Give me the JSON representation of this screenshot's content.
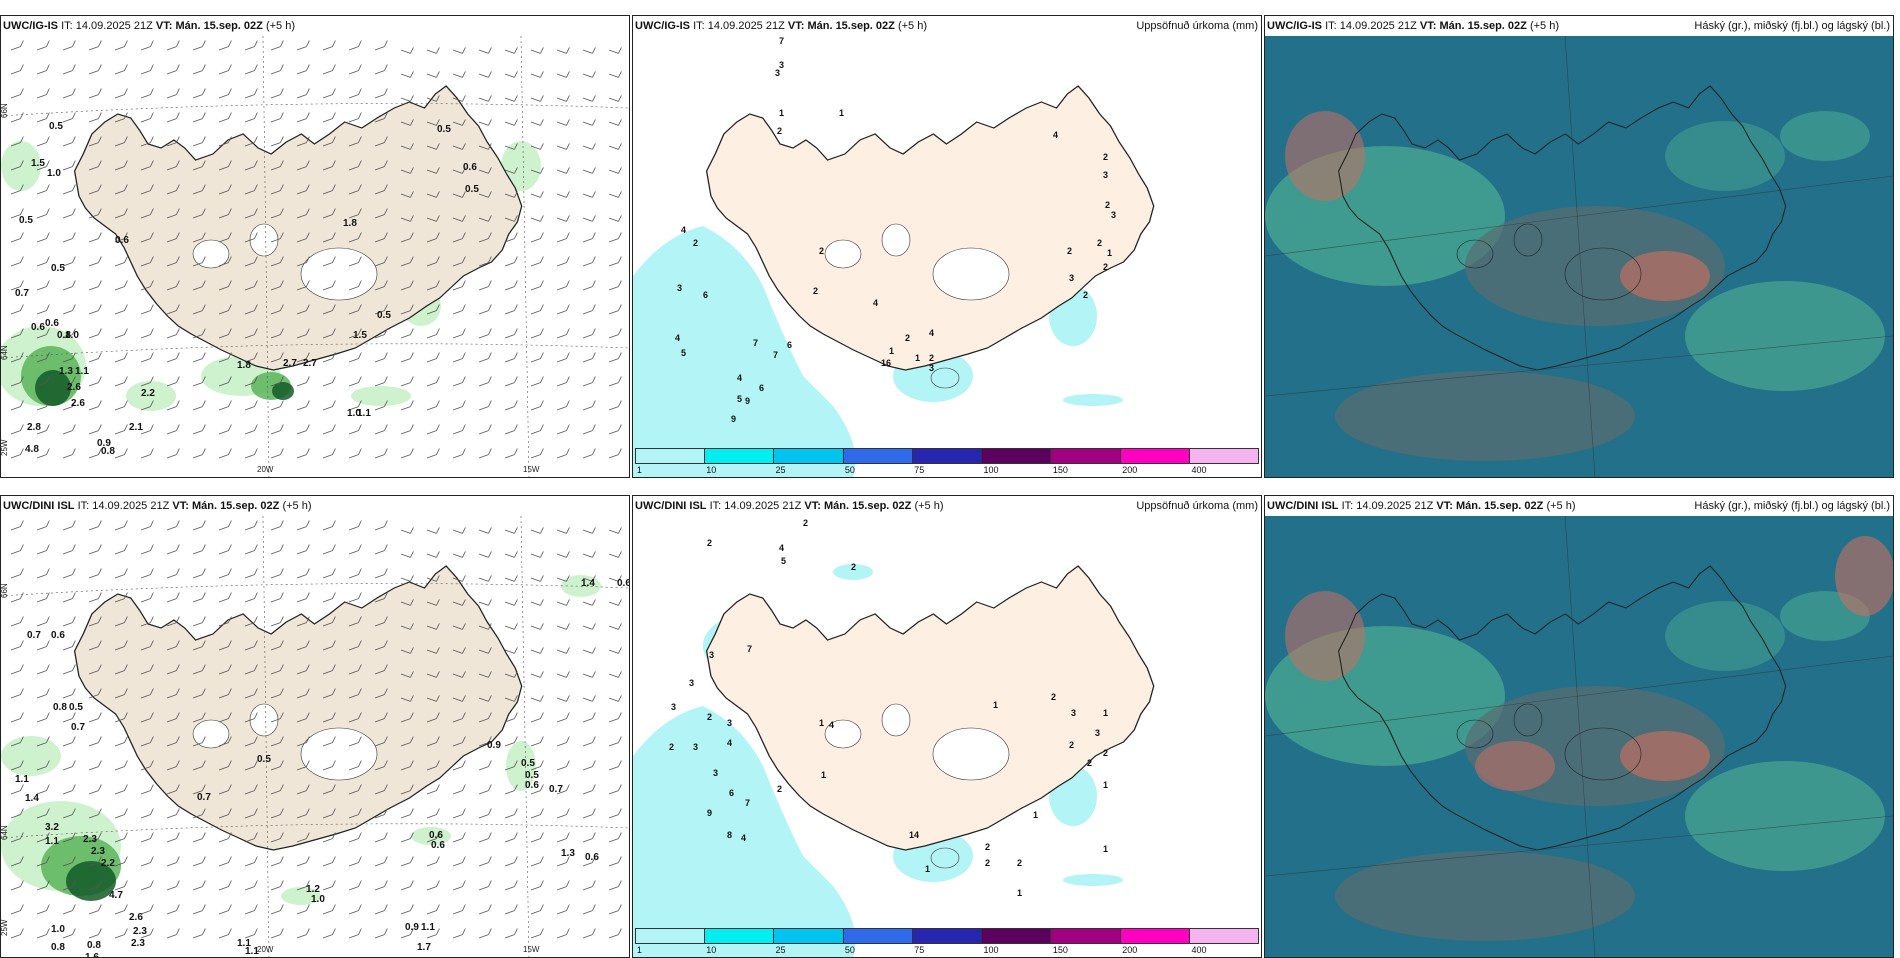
{
  "panels": [
    {
      "model": "UWC/IG-IS",
      "it_label": "IT:",
      "it_value": "14.09.2025 21Z",
      "vt_label": "VT:",
      "vt_value": "Mán. 15.sep. 02Z",
      "lead": "(+5 h)",
      "right_title": "",
      "kind": "wind",
      "axis_labels": [
        "66N",
        "64N",
        "20W",
        "15W",
        "25W"
      ],
      "values": [
        "0.5",
        "1.5",
        "1.0",
        "0.5",
        "0.6",
        "0.5",
        "0.7",
        "0.6",
        "0.6",
        "0.8",
        "1.0",
        "1.3",
        "1.1",
        "2.6",
        "2.6",
        "2.2",
        "2.1",
        "2.8",
        "4.8",
        "0.9",
        "0.8",
        "2.7",
        "2.7",
        "1.8",
        "0.5",
        "1.5",
        "1.0",
        "1.1",
        "0.5",
        "0.6",
        "0.5",
        "1.8"
      ]
    },
    {
      "model": "UWC/IG-IS",
      "it_label": "IT:",
      "it_value": "14.09.2025 21Z",
      "vt_label": "VT:",
      "vt_value": "Mán. 15.sep. 02Z",
      "lead": "(+5 h)",
      "right_title": "Uppsöfnuð úrkoma (mm)",
      "kind": "precip",
      "values": [
        "7",
        "3",
        "3",
        "1",
        "1",
        "2",
        "4",
        "2",
        "3",
        "6",
        "4",
        "5",
        "4",
        "5",
        "9",
        "9",
        "6",
        "7",
        "7",
        "6",
        "2",
        "2",
        "4",
        "2",
        "3",
        "1",
        "2",
        "1",
        "16",
        "4",
        "4",
        "2",
        "2",
        "2",
        "1",
        "2",
        "3",
        "2",
        "2",
        "3",
        "3"
      ]
    },
    {
      "model": "UWC/IG-IS",
      "it_label": "IT:",
      "it_value": "14.09.2025 21Z",
      "vt_label": "VT:",
      "vt_value": "Mán. 15.sep. 02Z",
      "lead": "(+5 h)",
      "right_title": "Háský (gr.), miðský (fj.bl.) og lágský (bl.)",
      "kind": "cloud"
    },
    {
      "model": "UWC/DINI ISL",
      "it_label": "IT:",
      "it_value": "14.09.2025 21Z",
      "vt_label": "VT:",
      "vt_value": "Mán. 15.sep. 02Z",
      "lead": "(+5 h)",
      "right_title": "",
      "kind": "wind",
      "axis_labels": [
        "66N",
        "64N",
        "20W",
        "15W",
        "25W"
      ],
      "values": [
        "0.7",
        "0.6",
        "0.8",
        "0.5",
        "0.7",
        "1.1",
        "1.4",
        "3.2",
        "1.1",
        "2.3",
        "2.3",
        "2.2",
        "4.7",
        "2.6",
        "2.3",
        "1.0",
        "0.8",
        "0.8",
        "1.6",
        "2.3",
        "1.1",
        "1.1",
        "1.2",
        "1.0",
        "0.7",
        "0.5",
        "0.6",
        "0.6",
        "0.9",
        "0.5",
        "0.5",
        "0.6",
        "0.7",
        "1.4",
        "0.6",
        "1.3",
        "0.6",
        "0.9",
        "1.1",
        "1.7"
      ]
    },
    {
      "model": "UWC/DINI ISL",
      "it_label": "IT:",
      "it_value": "14.09.2025 21Z",
      "vt_label": "VT:",
      "vt_value": "Mán. 15.sep. 02Z",
      "lead": "(+5 h)",
      "right_title": "Uppsöfnuð úrkoma (mm)",
      "kind": "precip",
      "values": [
        "2",
        "2",
        "4",
        "5",
        "2",
        "3",
        "7",
        "3",
        "3",
        "2",
        "2",
        "3",
        "3",
        "4",
        "3",
        "6",
        "7",
        "4",
        "8",
        "9",
        "2",
        "1",
        "4",
        "1",
        "14",
        "1",
        "2",
        "2",
        "2",
        "1",
        "2",
        "1",
        "3",
        "3",
        "1",
        "2",
        "2",
        "2",
        "1",
        "1",
        "1"
      ]
    },
    {
      "model": "UWC/DINI ISL",
      "it_label": "IT:",
      "it_value": "14.09.2025 21Z",
      "vt_label": "VT:",
      "vt_value": "Mán. 15.sep. 02Z",
      "lead": "(+5 h)",
      "right_title": "Háský (gr.), miðský (fj.bl.) og lágský (bl.)",
      "kind": "cloud"
    }
  ],
  "colorbar": {
    "labels": [
      "1",
      "10",
      "25",
      "50",
      "75",
      "100",
      "150",
      "200",
      "400"
    ],
    "colors": [
      "#b3f5f7",
      "#00eef0",
      "#00c4ee",
      "#2f6be8",
      "#2626b0",
      "#5c0060",
      "#a00080",
      "#ff00c0",
      "#f5b4f0"
    ]
  },
  "map_colors": {
    "land": "#f0e6d8",
    "land_precip": "#fdf0e2",
    "sea": "#ffffff",
    "precip": "#b3f5f7",
    "green_light": "#c6f0c6",
    "green_mid": "#5ab45a",
    "green_dark": "#145a28",
    "cloud_sea": "#22708a",
    "cloud_low": "#4aa890",
    "cloud_mid": "#5a6e70",
    "cloud_high": "#c87060"
  }
}
